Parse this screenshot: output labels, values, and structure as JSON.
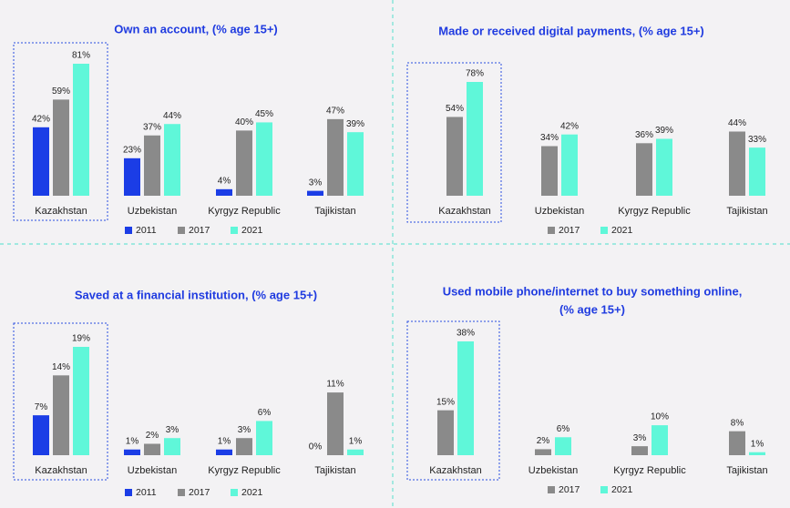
{
  "chart_data": [
    {
      "type": "bar",
      "title": "Own an account, (% age 15+)",
      "categories": [
        "Kazakhstan",
        "Uzbekistan",
        "Kyrgyz Republic",
        "Tajikistan"
      ],
      "series": [
        {
          "name": "2011",
          "color": "#1b3de6",
          "values": [
            42,
            23,
            4,
            3
          ],
          "value_labels": [
            "42%",
            "23%",
            "4%",
            "3%"
          ]
        },
        {
          "name": "2017",
          "color": "#8a8a8a",
          "values": [
            59,
            37,
            40,
            47
          ],
          "value_labels": [
            "59%",
            "37%",
            "40%",
            "47%"
          ]
        },
        {
          "name": "2021",
          "color": "#5ff7d9",
          "values": [
            81,
            44,
            45,
            39
          ],
          "value_labels": [
            "81%",
            "44%",
            "45%",
            "39%"
          ]
        }
      ]
    },
    {
      "type": "bar",
      "title": "Made or received digital payments, (% age 15+)",
      "categories": [
        "Kazakhstan",
        "Uzbekistan",
        "Kyrgyz Republic",
        "Tajikistan"
      ],
      "series": [
        {
          "name": "2017",
          "color": "#8a8a8a",
          "values": [
            54,
            34,
            36,
            44
          ],
          "value_labels": [
            "54%",
            "34%",
            "36%",
            "44%"
          ]
        },
        {
          "name": "2021",
          "color": "#5ff7d9",
          "values": [
            78,
            42,
            39,
            33
          ],
          "value_labels": [
            "78%",
            "42%",
            "39%",
            "33%"
          ]
        }
      ]
    },
    {
      "type": "bar",
      "title": "Saved at a financial institution, (% age 15+)",
      "categories": [
        "Kazakhstan",
        "Uzbekistan",
        "Kyrgyz Republic",
        "Tajikistan"
      ],
      "series": [
        {
          "name": "2011",
          "color": "#1b3de6",
          "values": [
            7,
            1,
            1,
            0
          ],
          "value_labels": [
            "7%",
            "1%",
            "1%",
            "0%"
          ]
        },
        {
          "name": "2017",
          "color": "#8a8a8a",
          "values": [
            14,
            2,
            3,
            11
          ],
          "value_labels": [
            "14%",
            "2%",
            "3%",
            "11%"
          ]
        },
        {
          "name": "2021",
          "color": "#5ff7d9",
          "values": [
            19,
            3,
            6,
            1
          ],
          "value_labels": [
            "19%",
            "3%",
            "6%",
            "1%"
          ]
        }
      ]
    },
    {
      "type": "bar",
      "title": [
        "Used mobile phone/internet to buy something online,",
        "(% age 15+)"
      ],
      "categories": [
        "Kazakhstan",
        "Uzbekistan",
        "Kyrgyz Republic",
        "Tajikistan"
      ],
      "series": [
        {
          "name": "2017",
          "color": "#8a8a8a",
          "values": [
            15,
            2,
            3,
            8
          ],
          "value_labels": [
            "15%",
            "2%",
            "3%",
            "8%"
          ]
        },
        {
          "name": "2021",
          "color": "#5ff7d9",
          "values": [
            38,
            6,
            10,
            1
          ],
          "value_labels": [
            "38%",
            "6%",
            "10%",
            "1%"
          ]
        }
      ]
    }
  ]
}
